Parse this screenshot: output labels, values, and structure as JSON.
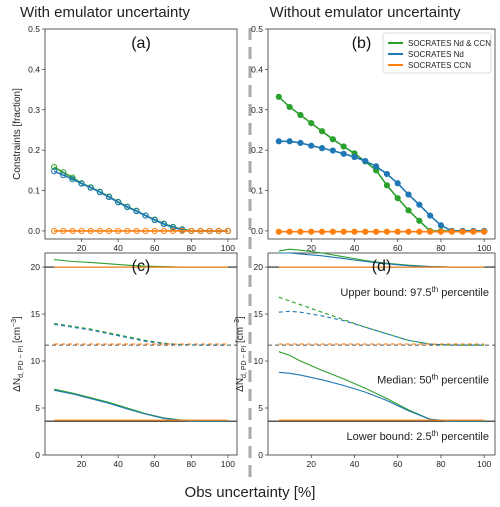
{
  "headers": {
    "left": "With emulator uncertainty",
    "right": "Without emulator uncertainty"
  },
  "xlabel": "Obs uncertainty [%]",
  "colors": {
    "nd_ccn": "#2ca02c",
    "nd": "#1f77b4",
    "ccn": "#ff7f0e",
    "ref": "#888888"
  },
  "chart_data": [
    {
      "id": "a",
      "panel_label": "(a)",
      "type": "line",
      "ylabel": "Constraints [fraction]",
      "xlim": [
        0,
        105
      ],
      "ylim": [
        -0.02,
        0.5
      ],
      "xticks": [
        "20",
        "40",
        "60",
        "80",
        "100"
      ],
      "yticks": [
        "0.0",
        "0.1",
        "0.2",
        "0.3",
        "0.4",
        "0.5"
      ],
      "x": [
        5,
        10,
        15,
        20,
        25,
        30,
        35,
        40,
        45,
        50,
        55,
        60,
        65,
        70,
        75,
        80,
        85,
        90,
        95,
        100
      ],
      "series": [
        {
          "name": "SOCRATES Nd & CCN",
          "color": "#2ca02c",
          "markers": true,
          "values": [
            0.158,
            0.145,
            0.132,
            0.118,
            0.108,
            0.097,
            0.085,
            0.072,
            0.06,
            0.05,
            0.038,
            0.028,
            0.018,
            0.01,
            0.004,
            0.0,
            0.0,
            0.0,
            0.0,
            0.0
          ]
        },
        {
          "name": "SOCRATES Nd",
          "color": "#1f77b4",
          "markers": true,
          "values": [
            0.148,
            0.138,
            0.128,
            0.117,
            0.107,
            0.096,
            0.084,
            0.071,
            0.059,
            0.049,
            0.038,
            0.027,
            0.017,
            0.009,
            0.003,
            0.0,
            0.0,
            0.0,
            0.0,
            0.0
          ]
        },
        {
          "name": "SOCRATES CCN",
          "color": "#ff7f0e",
          "markers": true,
          "values": [
            0,
            0,
            0,
            0,
            0,
            0,
            0,
            0,
            0,
            0,
            0,
            0,
            0,
            0,
            0,
            0,
            0,
            0,
            0,
            0
          ]
        }
      ]
    },
    {
      "id": "b",
      "panel_label": "(b)",
      "type": "line",
      "xlim": [
        0,
        105
      ],
      "ylim": [
        -0.02,
        0.5
      ],
      "xticks": [
        "20",
        "40",
        "60",
        "80",
        "100"
      ],
      "yticks": [
        "0.0",
        "0.1",
        "0.2",
        "0.3",
        "0.4",
        "0.5"
      ],
      "legend": {
        "position": "top-right",
        "entries": [
          "SOCRATES Nd & CCN",
          "SOCRATES Nd",
          "SOCRATES CCN"
        ]
      },
      "x": [
        5,
        10,
        15,
        20,
        25,
        30,
        35,
        40,
        45,
        50,
        55,
        60,
        65,
        70,
        75,
        80,
        85,
        90,
        95,
        100
      ],
      "series": [
        {
          "name": "SOCRATES Nd & CCN",
          "color": "#2ca02c",
          "markers": true,
          "values": [
            0.332,
            0.307,
            0.287,
            0.267,
            0.247,
            0.227,
            0.209,
            0.192,
            0.172,
            0.15,
            0.113,
            0.081,
            0.051,
            0.025,
            0.0,
            0.0,
            0.0,
            0.0,
            0.0,
            0.0
          ]
        },
        {
          "name": "SOCRATES Nd",
          "color": "#1f77b4",
          "markers": true,
          "values": [
            0.222,
            0.222,
            0.218,
            0.211,
            0.205,
            0.199,
            0.191,
            0.183,
            0.173,
            0.16,
            0.141,
            0.118,
            0.09,
            0.065,
            0.038,
            0.014,
            0.0,
            0.0,
            0.0,
            0.0
          ]
        },
        {
          "name": "SOCRATES CCN",
          "color": "#ff7f0e",
          "markers": true,
          "values": [
            -0.002,
            -0.002,
            -0.002,
            -0.002,
            -0.002,
            -0.002,
            -0.002,
            -0.002,
            -0.002,
            -0.002,
            -0.002,
            -0.002,
            -0.002,
            -0.002,
            -0.002,
            -0.002,
            -0.002,
            -0.002,
            -0.002,
            -0.002
          ]
        }
      ]
    },
    {
      "id": "c",
      "panel_label": "(c)",
      "type": "line",
      "ylabel": "ΔN_d,PD−PI [cm⁻³]",
      "xlim": [
        0,
        105
      ],
      "ylim": [
        0,
        21.5
      ],
      "xticks": [
        "20",
        "40",
        "60",
        "80",
        "100"
      ],
      "yticks": [
        "0",
        "5",
        "10",
        "15",
        "20"
      ],
      "reference_lines": [
        20,
        11.7,
        3.6
      ],
      "x": [
        5,
        15,
        25,
        35,
        45,
        55,
        65,
        75,
        85,
        95,
        100
      ],
      "series": [
        {
          "name": "SOCRATES Nd & CCN",
          "bound": "upper",
          "color": "#2ca02c",
          "dash": false,
          "values": [
            20.8,
            20.6,
            20.5,
            20.35,
            20.2,
            20.1,
            20.05,
            20.0,
            20.0,
            20.0,
            20.0
          ]
        },
        {
          "name": "SOCRATES Nd & CCN",
          "bound": "median",
          "color": "#2ca02c",
          "dash": true,
          "values": [
            14.0,
            13.7,
            13.4,
            13.0,
            12.6,
            12.2,
            11.9,
            11.75,
            11.7,
            11.7,
            11.7
          ]
        },
        {
          "name": "SOCRATES Nd",
          "bound": "median",
          "color": "#1f77b4",
          "dash": true,
          "values": [
            13.9,
            13.6,
            13.3,
            12.9,
            12.5,
            12.1,
            11.85,
            11.72,
            11.7,
            11.7,
            11.7
          ]
        },
        {
          "name": "SOCRATES Nd & CCN",
          "bound": "lower",
          "color": "#2ca02c",
          "dash": false,
          "values": [
            7.0,
            6.6,
            6.1,
            5.6,
            5.0,
            4.4,
            3.95,
            3.7,
            3.6,
            3.6,
            3.6
          ]
        },
        {
          "name": "SOCRATES Nd",
          "bound": "lower",
          "color": "#1f77b4",
          "dash": false,
          "values": [
            6.9,
            6.5,
            6.0,
            5.5,
            4.9,
            4.35,
            3.9,
            3.68,
            3.6,
            3.6,
            3.6
          ]
        },
        {
          "name": "SOCRATES CCN",
          "bound": "upper",
          "color": "#ff7f0e",
          "dash": false,
          "values": [
            20.0,
            20.0,
            20.0,
            20.0,
            20.0,
            20.0,
            20.0,
            20.0,
            20.0,
            20.0,
            20.0
          ]
        },
        {
          "name": "SOCRATES CCN",
          "bound": "median",
          "color": "#ff7f0e",
          "dash": true,
          "values": [
            11.8,
            11.8,
            11.8,
            11.8,
            11.8,
            11.8,
            11.8,
            11.8,
            11.8,
            11.8,
            11.8
          ]
        },
        {
          "name": "SOCRATES CCN",
          "bound": "lower",
          "color": "#ff7f0e",
          "dash": false,
          "values": [
            3.7,
            3.7,
            3.7,
            3.7,
            3.7,
            3.7,
            3.7,
            3.7,
            3.7,
            3.7,
            3.7
          ]
        }
      ]
    },
    {
      "id": "d",
      "panel_label": "(d)",
      "type": "line",
      "ylabel": "ΔN_d,PD−PI [cm⁻³]",
      "xlim": [
        0,
        105
      ],
      "ylim": [
        0,
        21.5
      ],
      "xticks": [
        "20",
        "40",
        "60",
        "80",
        "100"
      ],
      "yticks": [
        "0",
        "5",
        "10",
        "15",
        "20"
      ],
      "reference_lines": [
        20,
        11.7,
        3.6
      ],
      "annotations": {
        "upper": {
          "text": "Upper bound: 97.5",
          "sup": "th",
          "tail": " percentile"
        },
        "median": {
          "text": "Median: 50",
          "sup": "th",
          "tail": " percentile"
        },
        "lower": {
          "text": "Lower bound: 2.5",
          "sup": "th",
          "tail": " percentile"
        }
      },
      "x": [
        5,
        10,
        15,
        25,
        35,
        45,
        55,
        65,
        75,
        85,
        95,
        100
      ],
      "series": [
        {
          "name": "SOCRATES Nd & CCN",
          "bound": "upper",
          "color": "#2ca02c",
          "dash": false,
          "values": [
            21.7,
            21.9,
            21.8,
            21.5,
            21.1,
            20.7,
            20.4,
            20.2,
            20.05,
            20.0,
            20.0,
            20.0
          ]
        },
        {
          "name": "SOCRATES Nd",
          "bound": "upper",
          "color": "#1f77b4",
          "dash": false,
          "values": [
            21.5,
            21.5,
            21.4,
            21.2,
            20.9,
            20.6,
            20.35,
            20.15,
            20.05,
            20.0,
            20.0,
            20.0
          ]
        },
        {
          "name": "SOCRATES Nd & CCN",
          "bound": "median",
          "color": "#2ca02c",
          "dash": true,
          "values": [
            16.8,
            16.4,
            16.0,
            15.2,
            14.4,
            13.6,
            12.9,
            12.2,
            11.8,
            11.7,
            11.7,
            11.7
          ]
        },
        {
          "name": "SOCRATES Nd",
          "bound": "median",
          "color": "#1f77b4",
          "dash": true,
          "values": [
            15.2,
            15.3,
            15.2,
            14.8,
            14.3,
            13.6,
            12.9,
            12.2,
            11.8,
            11.7,
            11.7,
            11.7
          ]
        },
        {
          "name": "SOCRATES Nd & CCN",
          "bound": "lower",
          "color": "#2ca02c",
          "dash": false,
          "values": [
            11.0,
            10.6,
            10.0,
            9.0,
            8.1,
            7.1,
            6.0,
            4.8,
            3.8,
            3.6,
            3.6,
            3.6
          ]
        },
        {
          "name": "SOCRATES Nd",
          "bound": "lower",
          "color": "#1f77b4",
          "dash": false,
          "values": [
            8.8,
            8.7,
            8.5,
            8.0,
            7.4,
            6.7,
            5.8,
            4.7,
            3.8,
            3.6,
            3.6,
            3.6
          ]
        },
        {
          "name": "SOCRATES CCN",
          "bound": "upper",
          "color": "#ff7f0e",
          "dash": false,
          "values": [
            20.0,
            20.0,
            20.0,
            20.0,
            20.0,
            20.0,
            20.0,
            20.0,
            20.0,
            20.0,
            20.0,
            20.0
          ]
        },
        {
          "name": "SOCRATES CCN",
          "bound": "median",
          "color": "#ff7f0e",
          "dash": true,
          "values": [
            11.8,
            11.8,
            11.8,
            11.8,
            11.8,
            11.8,
            11.8,
            11.8,
            11.8,
            11.8,
            11.8,
            11.8
          ]
        },
        {
          "name": "SOCRATES CCN",
          "bound": "lower",
          "color": "#ff7f0e",
          "dash": false,
          "values": [
            3.7,
            3.7,
            3.7,
            3.7,
            3.7,
            3.7,
            3.7,
            3.7,
            3.7,
            3.7,
            3.7,
            3.7
          ]
        }
      ]
    }
  ]
}
